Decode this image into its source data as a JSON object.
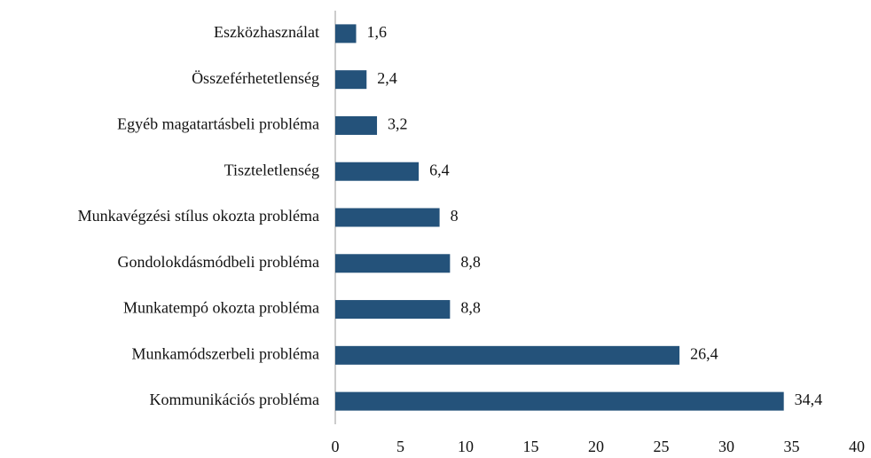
{
  "chart_data": {
    "type": "hbar",
    "categories": [
      "Eszközhasználat",
      "Összeférhetetlenség",
      "Egyéb magatartásbeli probléma",
      "Tiszteletlenség",
      "Munkavégzési stílus okozta probléma",
      "Gondolokdásmódbeli probléma",
      "Munkatempó okozta probléma",
      "Munkamódszerbeli probléma",
      "Kommunikációs probléma"
    ],
    "values": [
      1.6,
      2.4,
      3.2,
      6.4,
      8,
      8.8,
      8.8,
      26.4,
      34.4
    ],
    "value_labels": [
      "1,6",
      "2,4",
      "3,2",
      "6,4",
      "8",
      "8,8",
      "8,8",
      "26,4",
      "34,4"
    ],
    "color": "#24527a",
    "xlim": [
      0,
      40
    ],
    "xticks": [
      0,
      5,
      10,
      15,
      20,
      25,
      30,
      35,
      40
    ]
  }
}
